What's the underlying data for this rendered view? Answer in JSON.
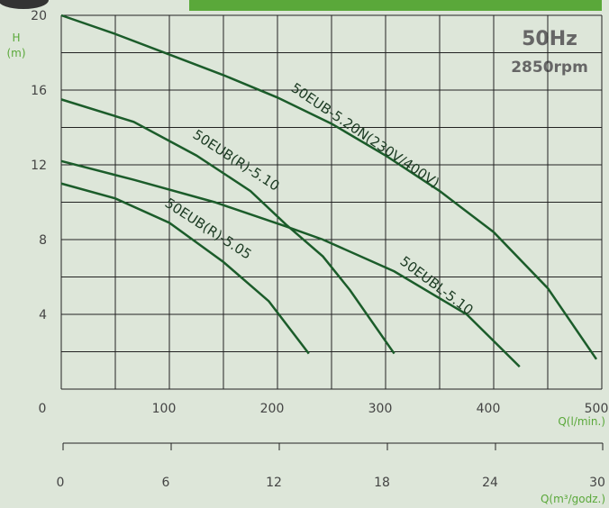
{
  "chart_data": {
    "type": "line",
    "annotations": [
      "50Hz",
      "2850rpm"
    ],
    "y_label": [
      "H",
      "(m)"
    ],
    "x_label": "Q(l/min.)",
    "x2_label": "Q(m³/godz.)",
    "xlim": [
      0,
      500
    ],
    "xticks": [
      0,
      100,
      200,
      300,
      400,
      500
    ],
    "xminor": [
      50,
      150,
      250,
      350,
      450
    ],
    "ylim": [
      0,
      20
    ],
    "yticks": [
      4,
      8,
      12,
      16,
      20
    ],
    "yminor": [
      2,
      6,
      10,
      14,
      18
    ],
    "x2lim": [
      0,
      30
    ],
    "x2ticks": [
      0,
      6,
      12,
      18,
      24,
      30
    ],
    "grid": true,
    "series": [
      {
        "name": "50EUB-5.20N(230V/400V)",
        "color": "#1b5c2a",
        "x": [
          0,
          50,
          100,
          150,
          200,
          250,
          300,
          350,
          400,
          450,
          495
        ],
        "values": [
          20,
          19.0,
          17.9,
          16.8,
          15.6,
          14.2,
          12.5,
          10.6,
          8.4,
          5.4,
          1.6
        ]
      },
      {
        "name": "50EUB(R)-5.10",
        "color": "#1b5c2a",
        "x": [
          0,
          67,
          125,
          175,
          208,
          242,
          267,
          308
        ],
        "values": [
          15.5,
          14.3,
          12.5,
          10.6,
          8.8,
          7.1,
          5.3,
          1.9
        ]
      },
      {
        "name": "50EUBL-5.10",
        "color": "#1b5c2a",
        "x": [
          0,
          67,
          142,
          208,
          242,
          308,
          375,
          424
        ],
        "values": [
          12.2,
          11.2,
          10.0,
          8.7,
          8.0,
          6.3,
          4.0,
          1.2
        ]
      },
      {
        "name": "50EUB(R)-5.05",
        "color": "#1b5c2a",
        "x": [
          0,
          50,
          100,
          150,
          192,
          229
        ],
        "values": [
          11.0,
          10.2,
          8.9,
          6.8,
          4.7,
          1.9
        ]
      }
    ]
  }
}
